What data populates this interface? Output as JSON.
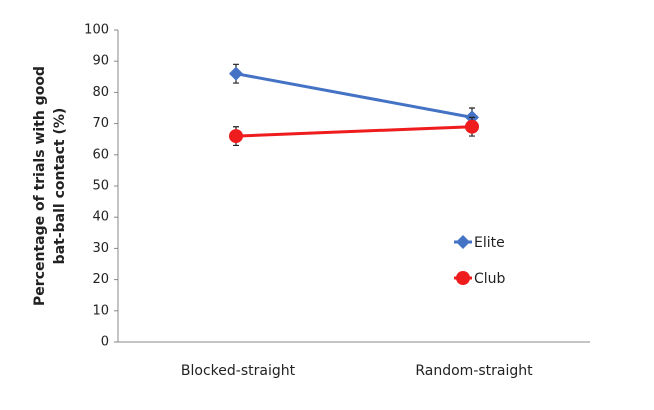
{
  "chart_data": {
    "type": "line",
    "ylabel": [
      "Percentage of trials with good",
      "bat-ball contact (%)"
    ],
    "categories": [
      "Blocked-straight",
      "Random-straight"
    ],
    "series": [
      {
        "name": "Elite",
        "color": "#4472c4",
        "marker": "diamond",
        "values": [
          86,
          72
        ],
        "errors": [
          3,
          3
        ]
      },
      {
        "name": "Club",
        "color": "#ee1c1c",
        "marker": "circle",
        "values": [
          66,
          69
        ],
        "errors": [
          3,
          3
        ]
      }
    ],
    "ylim": [
      0,
      100
    ],
    "yticks": [
      0,
      10,
      20,
      30,
      40,
      50,
      60,
      70,
      80,
      90,
      100
    ],
    "grid": false,
    "legend": "right"
  }
}
